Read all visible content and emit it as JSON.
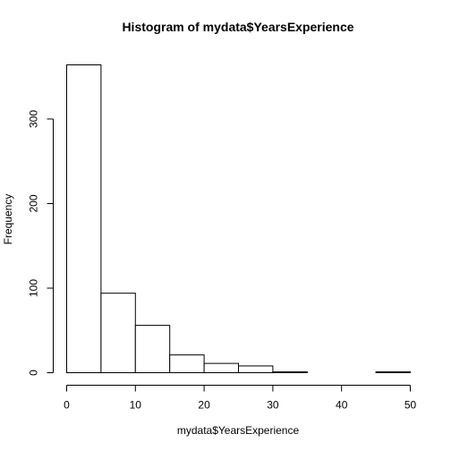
{
  "chart_data": {
    "type": "bar",
    "title": "Histogram of mydata$YearsExperience",
    "xlabel": "mydata$YearsExperience",
    "ylabel": "Frequency",
    "bins": [
      {
        "start": 0,
        "end": 5,
        "value": 364
      },
      {
        "start": 5,
        "end": 10,
        "value": 94
      },
      {
        "start": 10,
        "end": 15,
        "value": 56
      },
      {
        "start": 15,
        "end": 20,
        "value": 21
      },
      {
        "start": 20,
        "end": 25,
        "value": 11
      },
      {
        "start": 25,
        "end": 30,
        "value": 8
      },
      {
        "start": 30,
        "end": 35,
        "value": 1
      },
      {
        "start": 35,
        "end": 40,
        "value": 0
      },
      {
        "start": 40,
        "end": 45,
        "value": 0
      },
      {
        "start": 45,
        "end": 50,
        "value": 1
      }
    ],
    "xlim": [
      0,
      50
    ],
    "ylim": [
      0,
      364
    ],
    "xticks": [
      0,
      10,
      20,
      30,
      40,
      50
    ],
    "yticks": [
      0,
      100,
      200,
      300
    ],
    "grid": false,
    "legend": "none"
  }
}
